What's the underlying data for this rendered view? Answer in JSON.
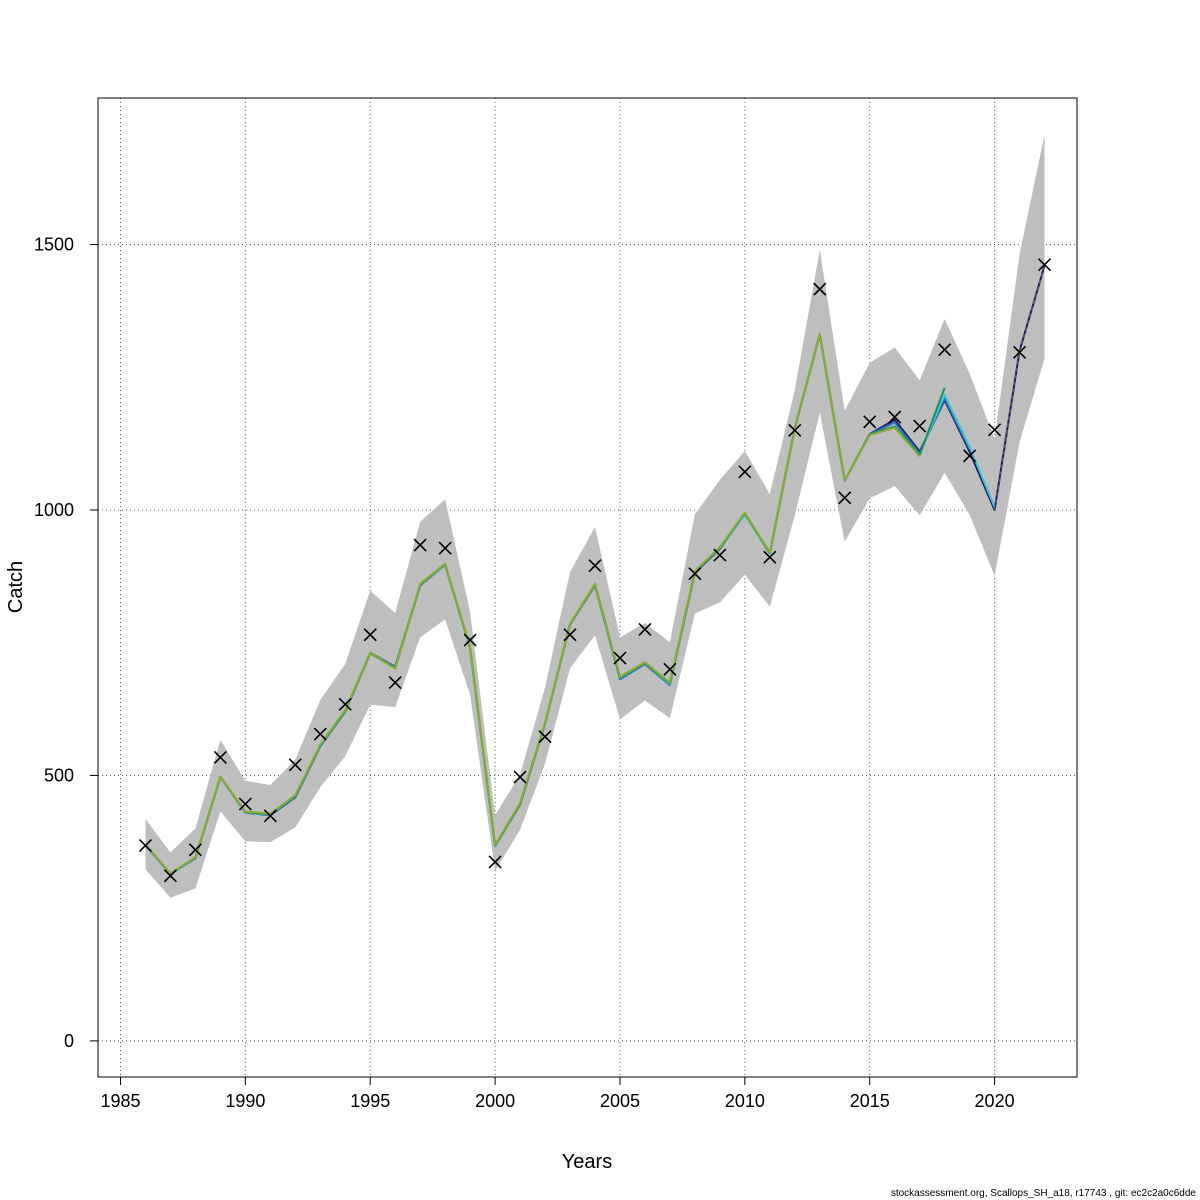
{
  "chart_data": {
    "type": "line",
    "xlabel": "Years",
    "ylabel": "Catch",
    "xlim": [
      1984.1,
      2023.3
    ],
    "ylim": [
      -68,
      1776
    ],
    "x_ticks": [
      1985,
      1990,
      1995,
      2000,
      2005,
      2010,
      2015,
      2020
    ],
    "y_ticks": [
      0,
      500,
      1000,
      1500
    ],
    "grid": true,
    "footer": "stockassessment.org, Scallops_SH_a18, r17743 , git: ec2c2a0c6dde",
    "band_color": "#bebebe",
    "observed": {
      "years": [
        1986,
        1987,
        1988,
        1989,
        1990,
        1991,
        1992,
        1993,
        1994,
        1995,
        1996,
        1997,
        1998,
        1999,
        2000,
        2001,
        2002,
        2003,
        2004,
        2005,
        2006,
        2007,
        2008,
        2009,
        2010,
        2011,
        2012,
        2013,
        2014,
        2015,
        2016,
        2017,
        2018,
        2019,
        2020,
        2021,
        2022
      ],
      "values": [
        368,
        311,
        360,
        534,
        446,
        424,
        520,
        578,
        634,
        765,
        675,
        934,
        928,
        755,
        337,
        497,
        573,
        765,
        895,
        721,
        775,
        700,
        880,
        915,
        1072,
        911,
        1150,
        1416,
        1023,
        1166,
        1175,
        1158,
        1302,
        1102,
        1151,
        1297,
        1462
      ]
    },
    "band": {
      "years": [
        1986,
        1987,
        1988,
        1989,
        1990,
        1991,
        1992,
        1993,
        1994,
        1995,
        1996,
        1997,
        1998,
        1999,
        2000,
        2001,
        2002,
        2003,
        2004,
        2005,
        2006,
        2007,
        2008,
        2009,
        2010,
        2011,
        2012,
        2013,
        2014,
        2015,
        2016,
        2017,
        2018,
        2019,
        2020,
        2021,
        2022
      ],
      "lower": [
        323,
        270,
        287,
        432,
        376,
        374,
        402,
        478,
        536,
        633,
        629,
        760,
        794,
        652,
        320,
        398,
        522,
        702,
        764,
        606,
        641,
        608,
        805,
        826,
        878,
        818,
        990,
        1183,
        940,
        1022,
        1045,
        990,
        1070,
        991,
        876,
        1128,
        1285
      ],
      "upper": [
        418,
        355,
        400,
        567,
        490,
        482,
        530,
        642,
        710,
        848,
        806,
        978,
        1020,
        808,
        425,
        502,
        665,
        883,
        968,
        760,
        787,
        751,
        992,
        1057,
        1111,
        1030,
        1226,
        1490,
        1187,
        1277,
        1306,
        1244,
        1360,
        1257,
        1134,
        1482,
        1707
      ]
    },
    "series": [
      {
        "color": "#1a1a66",
        "years": [
          1986,
          1987,
          1988,
          1989,
          1990,
          1991,
          1992,
          1993,
          1994,
          1995,
          1996,
          1997,
          1998,
          1999,
          2000,
          2001,
          2002,
          2003,
          2004,
          2005,
          2006,
          2007,
          2008,
          2009,
          2010,
          2011,
          2012,
          2013,
          2014,
          2015,
          2016,
          2017,
          2018,
          2019,
          2020,
          2021,
          2022
        ],
        "values": [
          369,
          315,
          345,
          497,
          430,
          425,
          459,
          555,
          620,
          730,
          703,
          858,
          897,
          740,
          367,
          445,
          597,
          784,
          858,
          684,
          713,
          673,
          882,
          927,
          992,
          918,
          1154,
          1330,
          1055,
          1143,
          1170,
          1110,
          1207,
          1110,
          1000,
          1300,
          1460
        ]
      },
      {
        "color": "#2a6fb0",
        "years": [
          1986,
          1987,
          1988,
          1989,
          1990,
          1991,
          1992,
          1993,
          1994,
          1995,
          1996,
          1997,
          1998,
          1999,
          2000,
          2001,
          2002,
          2003,
          2004,
          2005,
          2006,
          2007,
          2008,
          2009,
          2010,
          2011,
          2012,
          2013,
          2014,
          2015,
          2016,
          2017,
          2018,
          2019
        ],
        "values": [
          368,
          314,
          344,
          497,
          431,
          426,
          460,
          556,
          621,
          731,
          705,
          859,
          898,
          741,
          367,
          446,
          598,
          785,
          859,
          681,
          710,
          670,
          884,
          929,
          993,
          919,
          1155,
          1331,
          1055,
          1143,
          1165,
          1107,
          1210,
          1115
        ]
      },
      {
        "color": "#40c4d8",
        "years": [
          1986,
          1987,
          1988,
          1989,
          1990,
          1991,
          1992,
          1993,
          1994,
          1995,
          1996,
          1997,
          1998,
          1999,
          2000,
          2001,
          2002,
          2003,
          2004,
          2005,
          2006,
          2007,
          2008,
          2009,
          2010,
          2011,
          2012,
          2013,
          2014,
          2015,
          2016,
          2017,
          2018,
          2019,
          2020
        ],
        "values": [
          369,
          314,
          345,
          497,
          430,
          426,
          461,
          556,
          621,
          730,
          702,
          859,
          897,
          740,
          367,
          446,
          597,
          784,
          859,
          684,
          712,
          672,
          884,
          928,
          991,
          918,
          1155,
          1330,
          1055,
          1142,
          1157,
          1104,
          1217,
          1119,
          1005
        ]
      },
      {
        "color": "#1f8f5a",
        "years": [
          1986,
          1987,
          1988,
          1989,
          1990,
          1991,
          1992,
          1993,
          1994,
          1995,
          1996,
          1997,
          1998,
          1999,
          2000,
          2001,
          2002,
          2003,
          2004,
          2005,
          2006,
          2007,
          2008,
          2009,
          2010,
          2011,
          2012,
          2013,
          2014,
          2015,
          2016,
          2017,
          2018
        ],
        "values": [
          370,
          315,
          345,
          498,
          431,
          427,
          462,
          557,
          622,
          730,
          702,
          860,
          898,
          741,
          368,
          447,
          598,
          785,
          860,
          685,
          712,
          674,
          884,
          929,
          994,
          919,
          1155,
          1330,
          1056,
          1142,
          1157,
          1104,
          1230
        ]
      },
      {
        "color": "#8aab2f",
        "years": [
          1986,
          1987,
          1988,
          1989,
          1990,
          1991,
          1992,
          1993,
          1994,
          1995,
          1996,
          1997,
          1998,
          1999,
          2000,
          2001,
          2002,
          2003,
          2004,
          2005,
          2006,
          2007,
          2008,
          2009,
          2010,
          2011,
          2012,
          2013,
          2014,
          2015,
          2016,
          2017
        ],
        "values": [
          370,
          315,
          346,
          498,
          432,
          428,
          463,
          558,
          623,
          731,
          701,
          861,
          899,
          742,
          369,
          448,
          599,
          786,
          861,
          686,
          713,
          675,
          885,
          930,
          995,
          920,
          1155,
          1330,
          1056,
          1141,
          1155,
          1101
        ]
      }
    ],
    "projection": {
      "color": "#555555",
      "years": [
        2020,
        2021,
        2022
      ],
      "values": [
        1000,
        1300,
        1460
      ]
    }
  }
}
